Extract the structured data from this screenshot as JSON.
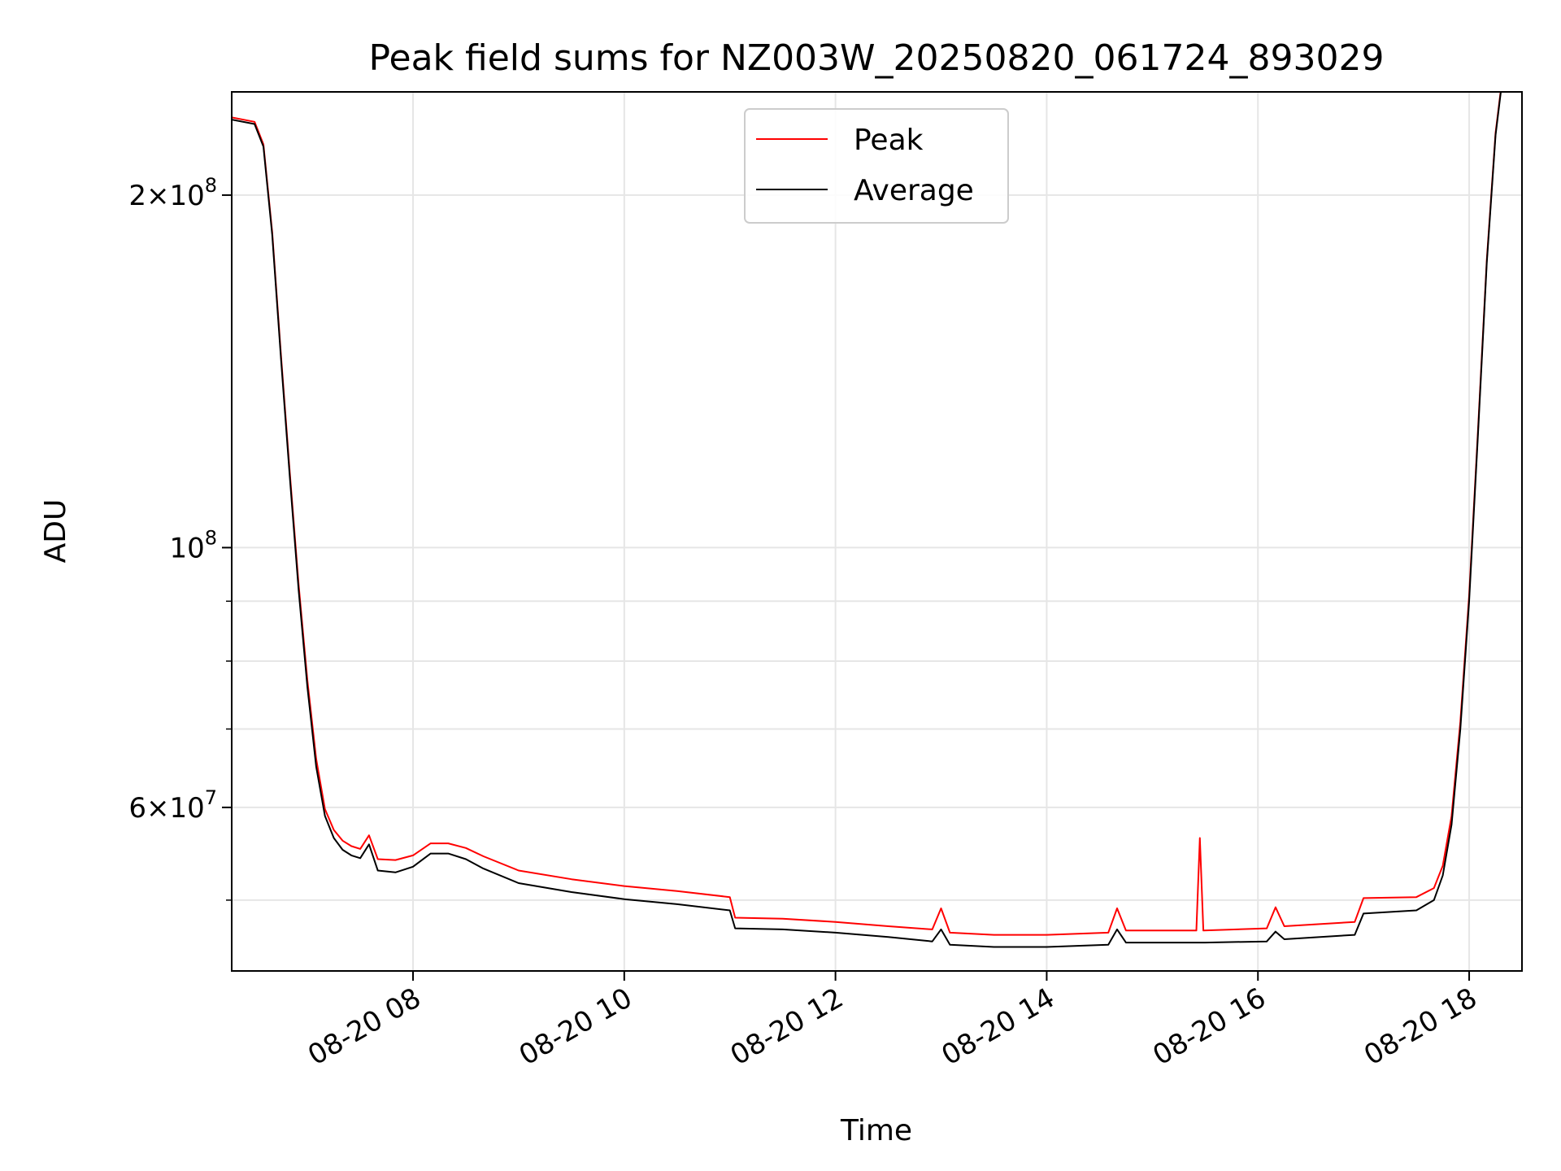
{
  "chart_data": {
    "type": "line",
    "title": "Peak field sums for NZ003W_20250820_061724_893029",
    "xlabel": "Time",
    "ylabel": "ADU",
    "y_scale": "log",
    "ylim": [
      43500000,
      245000000
    ],
    "xlim": [
      "2025-08-20 06:17",
      "2025-08-20 18:30"
    ],
    "grid": true,
    "legend_position": "top-center",
    "x_ticks": [
      {
        "value": "2025-08-20 08:00",
        "label": "08-20 08"
      },
      {
        "value": "2025-08-20 10:00",
        "label": "08-20 10"
      },
      {
        "value": "2025-08-20 12:00",
        "label": "08-20 12"
      },
      {
        "value": "2025-08-20 14:00",
        "label": "08-20 14"
      },
      {
        "value": "2025-08-20 16:00",
        "label": "08-20 16"
      },
      {
        "value": "2025-08-20 18:00",
        "label": "08-20 18"
      }
    ],
    "y_ticks": [
      {
        "value": 60000000,
        "mantissa": "6",
        "exp": "7"
      },
      {
        "value": 100000000,
        "mantissa": "",
        "exp": "8"
      },
      {
        "value": 200000000,
        "mantissa": "2",
        "exp": "8"
      }
    ],
    "y_minor_ticks": [
      50000000,
      70000000,
      80000000,
      90000000
    ],
    "series": [
      {
        "name": "Average",
        "color": "#000000",
        "points": [
          [
            "2025-08-20 06:17",
            232000000
          ],
          [
            "2025-08-20 06:30",
            230000000
          ],
          [
            "2025-08-20 06:35",
            220000000
          ],
          [
            "2025-08-20 06:40",
            185000000
          ],
          [
            "2025-08-20 06:45",
            145000000
          ],
          [
            "2025-08-20 06:50",
            115000000
          ],
          [
            "2025-08-20 06:55",
            92000000
          ],
          [
            "2025-08-20 07:00",
            76000000
          ],
          [
            "2025-08-20 07:05",
            65000000
          ],
          [
            "2025-08-20 07:10",
            59000000
          ],
          [
            "2025-08-20 07:15",
            56500000
          ],
          [
            "2025-08-20 07:20",
            55200000
          ],
          [
            "2025-08-20 07:25",
            54600000
          ],
          [
            "2025-08-20 07:30",
            54300000
          ],
          [
            "2025-08-20 07:35",
            55800000
          ],
          [
            "2025-08-20 07:40",
            53000000
          ],
          [
            "2025-08-20 07:50",
            52800000
          ],
          [
            "2025-08-20 08:00",
            53400000
          ],
          [
            "2025-08-20 08:10",
            54800000
          ],
          [
            "2025-08-20 08:20",
            54800000
          ],
          [
            "2025-08-20 08:30",
            54200000
          ],
          [
            "2025-08-20 08:40",
            53200000
          ],
          [
            "2025-08-20 09:00",
            51700000
          ],
          [
            "2025-08-20 09:30",
            50800000
          ],
          [
            "2025-08-20 10:00",
            50100000
          ],
          [
            "2025-08-20 10:30",
            49600000
          ],
          [
            "2025-08-20 11:00",
            49000000
          ],
          [
            "2025-08-20 11:03",
            47300000
          ],
          [
            "2025-08-20 11:30",
            47200000
          ],
          [
            "2025-08-20 12:00",
            46900000
          ],
          [
            "2025-08-20 12:30",
            46500000
          ],
          [
            "2025-08-20 12:55",
            46100000
          ],
          [
            "2025-08-20 13:00",
            47200000
          ],
          [
            "2025-08-20 13:05",
            45800000
          ],
          [
            "2025-08-20 13:30",
            45600000
          ],
          [
            "2025-08-20 14:00",
            45600000
          ],
          [
            "2025-08-20 14:35",
            45800000
          ],
          [
            "2025-08-20 14:40",
            47200000
          ],
          [
            "2025-08-20 14:45",
            46000000
          ],
          [
            "2025-08-20 15:30",
            46000000
          ],
          [
            "2025-08-20 16:05",
            46100000
          ],
          [
            "2025-08-20 16:10",
            47000000
          ],
          [
            "2025-08-20 16:15",
            46300000
          ],
          [
            "2025-08-20 16:55",
            46700000
          ],
          [
            "2025-08-20 17:00",
            48700000
          ],
          [
            "2025-08-20 17:30",
            49000000
          ],
          [
            "2025-08-20 17:40",
            50000000
          ],
          [
            "2025-08-20 17:45",
            52500000
          ],
          [
            "2025-08-20 17:50",
            58000000
          ],
          [
            "2025-08-20 17:55",
            70000000
          ],
          [
            "2025-08-20 18:00",
            90000000
          ],
          [
            "2025-08-20 18:05",
            125000000
          ],
          [
            "2025-08-20 18:10",
            175000000
          ],
          [
            "2025-08-20 18:15",
            225000000
          ],
          [
            "2025-08-20 18:18",
            245000000
          ]
        ]
      },
      {
        "name": "Peak",
        "color": "#ff0000",
        "points": [
          [
            "2025-08-20 06:17",
            233000000
          ],
          [
            "2025-08-20 06:30",
            231000000
          ],
          [
            "2025-08-20 06:35",
            221000000
          ],
          [
            "2025-08-20 06:40",
            186000000
          ],
          [
            "2025-08-20 06:45",
            146000000
          ],
          [
            "2025-08-20 06:50",
            116000000
          ],
          [
            "2025-08-20 06:55",
            93000000
          ],
          [
            "2025-08-20 07:00",
            77000000
          ],
          [
            "2025-08-20 07:05",
            66000000
          ],
          [
            "2025-08-20 07:10",
            59800000
          ],
          [
            "2025-08-20 07:15",
            57400000
          ],
          [
            "2025-08-20 07:20",
            56200000
          ],
          [
            "2025-08-20 07:25",
            55600000
          ],
          [
            "2025-08-20 07:30",
            55300000
          ],
          [
            "2025-08-20 07:35",
            56800000
          ],
          [
            "2025-08-20 07:40",
            54200000
          ],
          [
            "2025-08-20 07:50",
            54100000
          ],
          [
            "2025-08-20 08:00",
            54600000
          ],
          [
            "2025-08-20 08:10",
            55900000
          ],
          [
            "2025-08-20 08:20",
            55900000
          ],
          [
            "2025-08-20 08:30",
            55400000
          ],
          [
            "2025-08-20 08:40",
            54500000
          ],
          [
            "2025-08-20 09:00",
            53000000
          ],
          [
            "2025-08-20 09:30",
            52100000
          ],
          [
            "2025-08-20 10:00",
            51400000
          ],
          [
            "2025-08-20 10:30",
            50900000
          ],
          [
            "2025-08-20 11:00",
            50300000
          ],
          [
            "2025-08-20 11:03",
            48300000
          ],
          [
            "2025-08-20 11:30",
            48200000
          ],
          [
            "2025-08-20 12:00",
            47900000
          ],
          [
            "2025-08-20 12:30",
            47500000
          ],
          [
            "2025-08-20 12:55",
            47200000
          ],
          [
            "2025-08-20 13:00",
            49200000
          ],
          [
            "2025-08-20 13:05",
            46900000
          ],
          [
            "2025-08-20 13:30",
            46700000
          ],
          [
            "2025-08-20 14:00",
            46700000
          ],
          [
            "2025-08-20 14:35",
            46900000
          ],
          [
            "2025-08-20 14:40",
            49200000
          ],
          [
            "2025-08-20 14:45",
            47100000
          ],
          [
            "2025-08-20 15:25",
            47100000
          ],
          [
            "2025-08-20 15:27",
            56500000
          ],
          [
            "2025-08-20 15:29",
            47100000
          ],
          [
            "2025-08-20 16:05",
            47300000
          ],
          [
            "2025-08-20 16:10",
            49300000
          ],
          [
            "2025-08-20 16:15",
            47500000
          ],
          [
            "2025-08-20 16:55",
            47900000
          ],
          [
            "2025-08-20 17:00",
            50200000
          ],
          [
            "2025-08-20 17:30",
            50300000
          ],
          [
            "2025-08-20 17:40",
            51200000
          ],
          [
            "2025-08-20 17:45",
            53500000
          ],
          [
            "2025-08-20 17:50",
            59000000
          ],
          [
            "2025-08-20 17:55",
            71000000
          ],
          [
            "2025-08-20 18:00",
            91000000
          ],
          [
            "2025-08-20 18:05",
            126000000
          ],
          [
            "2025-08-20 18:10",
            176000000
          ],
          [
            "2025-08-20 18:15",
            226000000
          ],
          [
            "2025-08-20 18:18",
            246000000
          ]
        ]
      }
    ],
    "legend": {
      "entries": [
        {
          "label": "Peak",
          "color": "#ff0000"
        },
        {
          "label": "Average",
          "color": "#000000"
        }
      ]
    }
  }
}
